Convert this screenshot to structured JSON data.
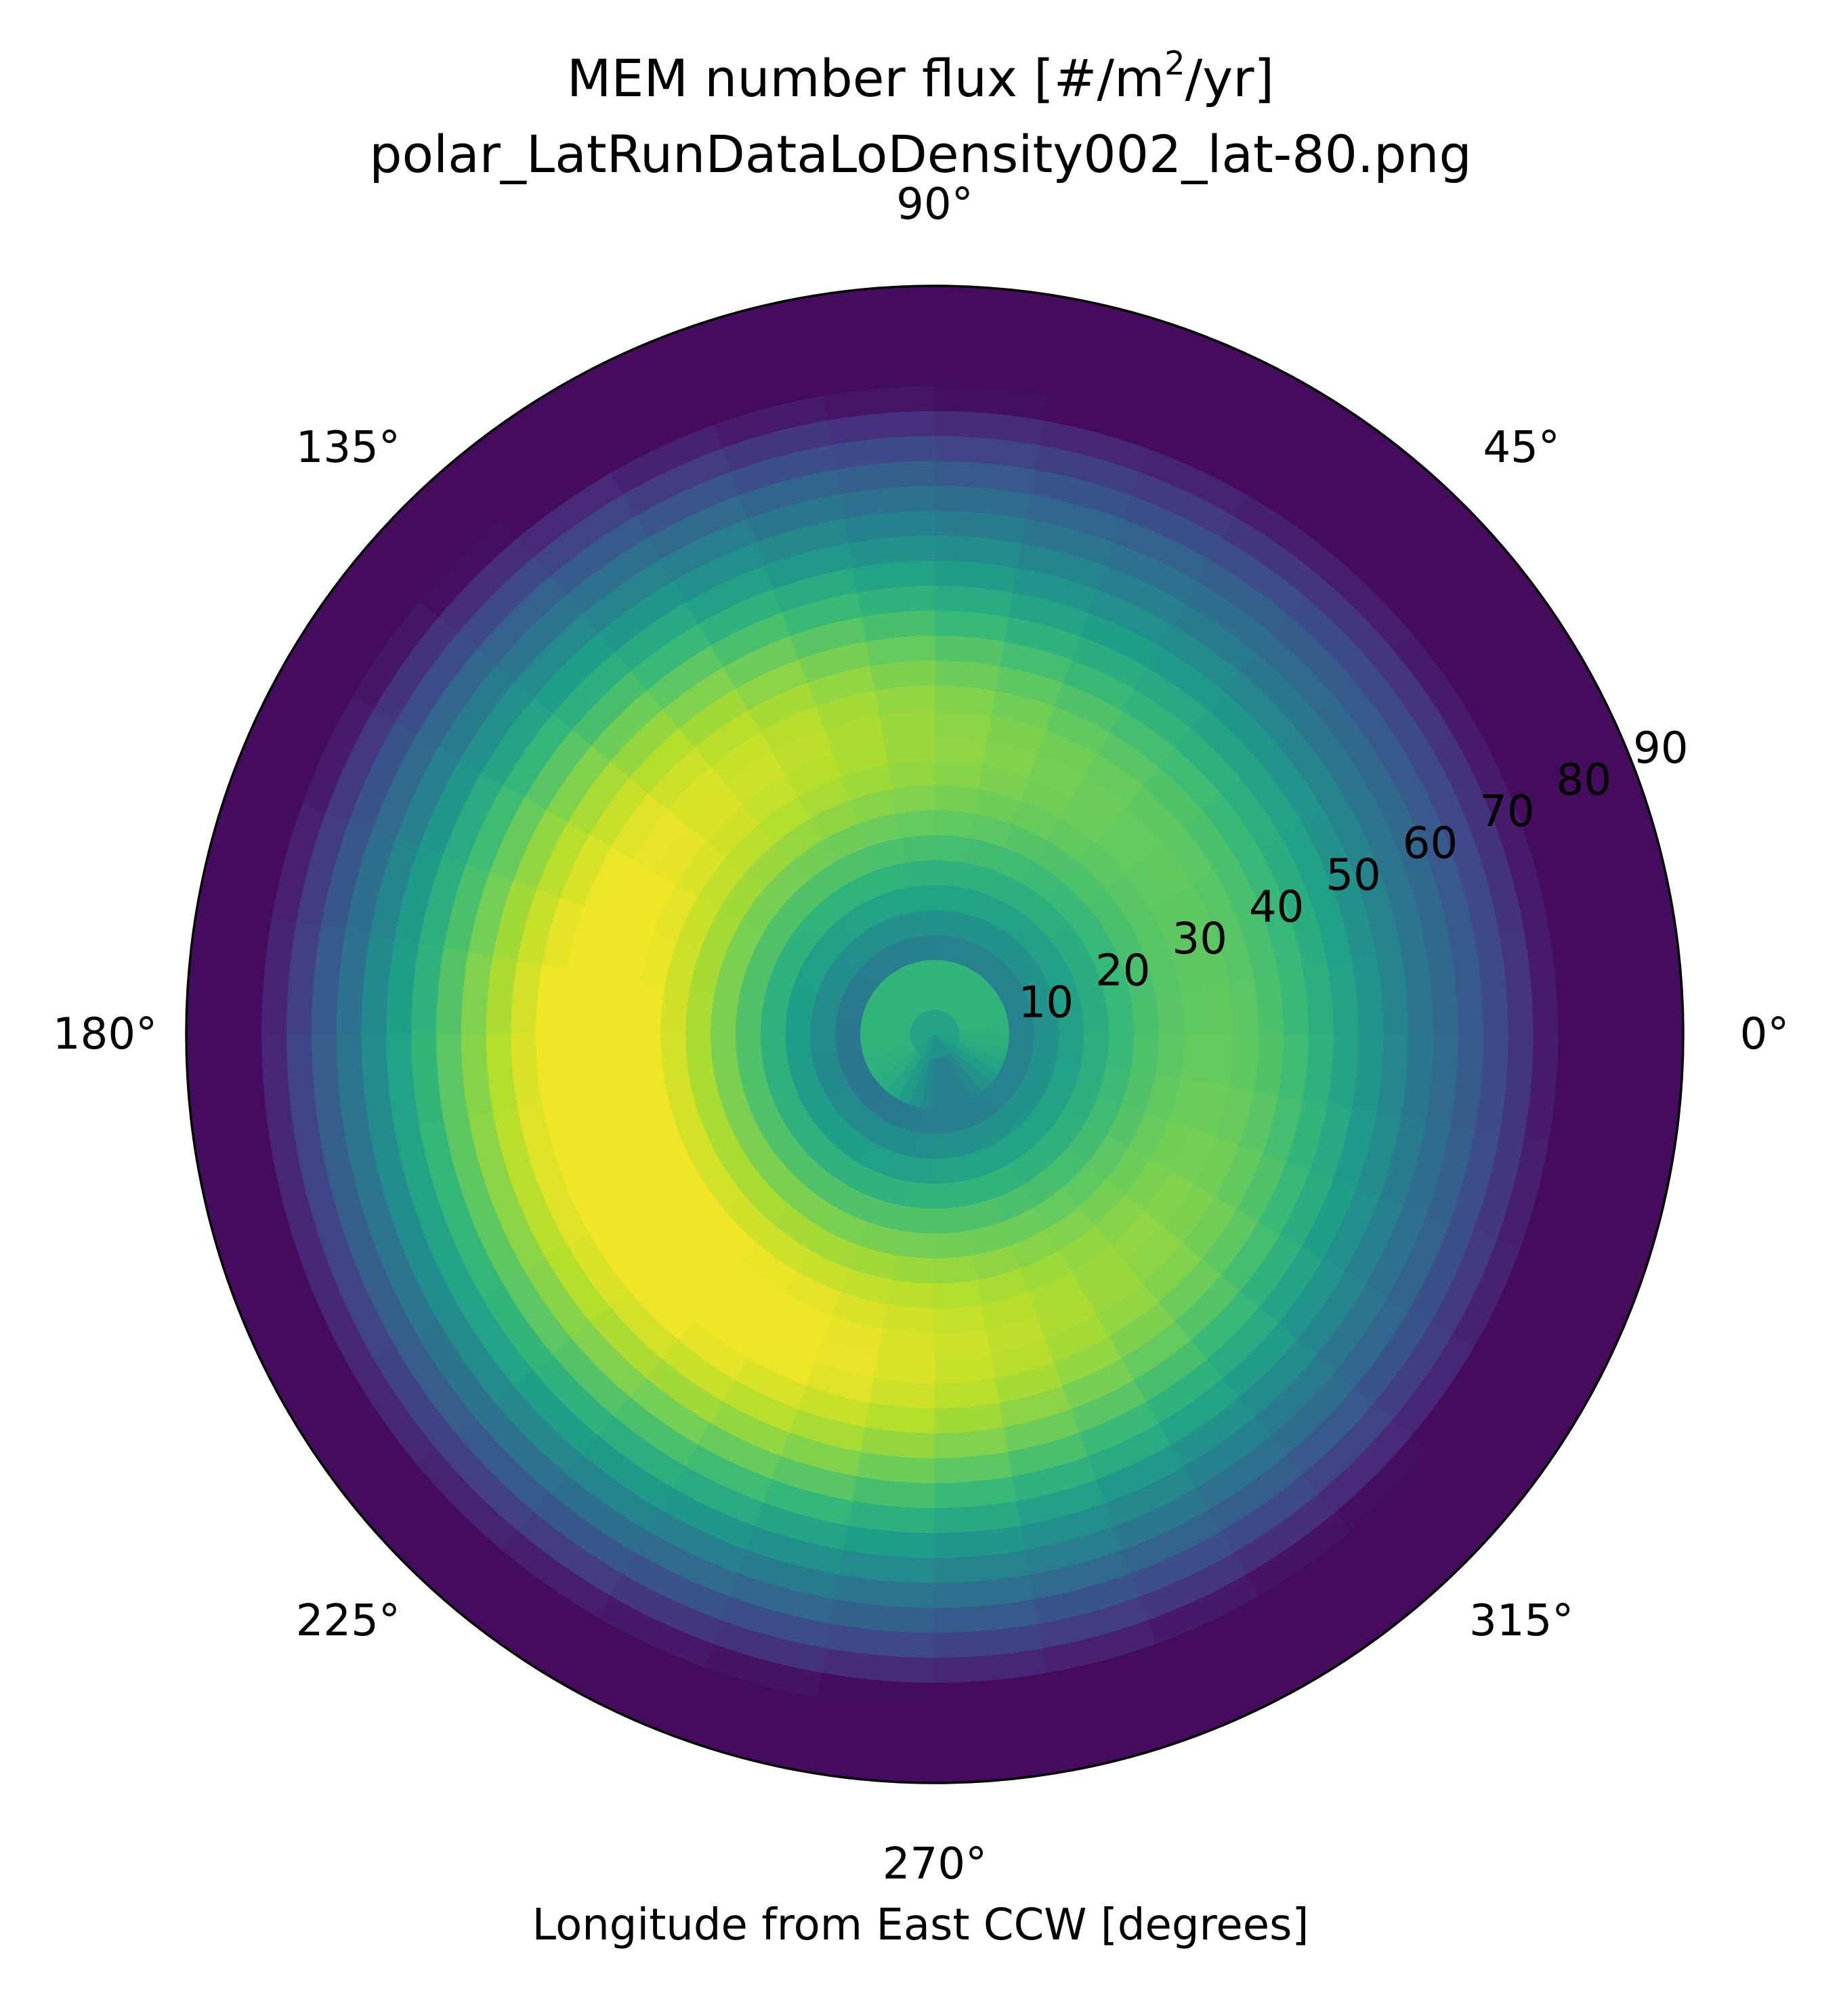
{
  "title": {
    "prefix": "MEM number flux [#/m",
    "superscript": "2",
    "suffix": "/yr]",
    "subtitle": "polar_LatRunDataLoDensity002_lat-80.png"
  },
  "chart_data": {
    "type": "heatmap",
    "projection": "polar",
    "xlabel": "Longitude from East CCW [degrees]",
    "angle_ticks": [
      0,
      45,
      90,
      135,
      180,
      225,
      270,
      315
    ],
    "angle_tick_labels": [
      "0°",
      "45°",
      "90°",
      "135°",
      "180°",
      "225°",
      "270°",
      "315°"
    ],
    "radial_ticks": [
      10,
      20,
      30,
      40,
      50,
      60,
      70,
      80,
      90
    ],
    "radial_tick_labels": [
      "10",
      "20",
      "30",
      "40",
      "50",
      "60",
      "70",
      "80",
      "90"
    ],
    "radial_tick_angle_deg": 22.5,
    "rlim": [
      0,
      90
    ],
    "theta_bins_deg": 10,
    "r_bins": 30,
    "colormap": "viridis",
    "grid": false,
    "relative_scale": "0 = darkest (purple), 1 = brightest (yellow)",
    "field": {
      "inner_peak_r": 2,
      "inner_peak_value": 0.67,
      "center_value": 0.55,
      "inner_dip_theta_deg": 285,
      "inner_dip_value": 0.44,
      "main_peak_r": 37,
      "main_peak_theta_deg": 200,
      "main_peak_value": 0.98,
      "min_theta_deg": 15,
      "min_value": 0.03
    },
    "frame_color": "#000000"
  }
}
